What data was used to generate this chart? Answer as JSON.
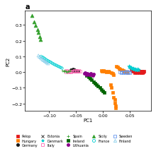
{
  "title": "a",
  "xlabel": "PC1",
  "ylabel": "PC2",
  "xlim": [
    -0.145,
    0.09
  ],
  "ylim": [
    -0.245,
    0.39
  ],
  "xticks": [
    -0.1,
    -0.05,
    0.0,
    0.05
  ],
  "yticks": [
    -0.2,
    -0.1,
    0.0,
    0.1,
    0.2,
    0.3
  ],
  "populations": {
    "Pelop": {
      "color": "#e31a1c",
      "marker": "s",
      "filled": true,
      "ms": 3.5,
      "points": [
        [
          0.055,
          0.008
        ],
        [
          0.057,
          0.012
        ],
        [
          0.058,
          0.005
        ],
        [
          0.06,
          0.01
        ],
        [
          0.061,
          0.003
        ],
        [
          0.062,
          0.007
        ],
        [
          0.063,
          0.002
        ],
        [
          0.064,
          0.006
        ],
        [
          0.065,
          0.004
        ],
        [
          0.066,
          0.009
        ],
        [
          0.067,
          0.001
        ],
        [
          0.068,
          0.005
        ],
        [
          0.069,
          0.003
        ],
        [
          0.07,
          0.007
        ],
        [
          0.071,
          0.002
        ],
        [
          0.072,
          0.006
        ],
        [
          0.073,
          -0.001
        ],
        [
          0.074,
          0.004
        ],
        [
          0.075,
          0.002
        ],
        [
          0.076,
          0.005
        ],
        [
          0.053,
          0.013
        ],
        [
          0.054,
          0.01
        ],
        [
          0.056,
          0.006
        ],
        [
          0.059,
          -0.002
        ],
        [
          0.063,
          -0.004
        ],
        [
          0.067,
          -0.003
        ],
        [
          0.071,
          -0.005
        ],
        [
          0.074,
          -0.002
        ]
      ]
    },
    "Hungary": {
      "color": "#ff7f00",
      "marker": "s",
      "filled": true,
      "ms": 3.5,
      "points": [
        [
          -0.003,
          0.01
        ],
        [
          -0.001,
          0.005
        ],
        [
          0.001,
          0.008
        ],
        [
          0.003,
          0.003
        ],
        [
          0.005,
          0.006
        ],
        [
          0.007,
          0.002
        ],
        [
          0.01,
          0.005
        ],
        [
          0.012,
          0.0
        ],
        [
          0.015,
          -0.005
        ],
        [
          0.018,
          -0.01
        ],
        [
          0.02,
          -0.015
        ],
        [
          0.014,
          -0.08
        ],
        [
          0.016,
          -0.1
        ],
        [
          0.018,
          -0.13
        ],
        [
          0.02,
          -0.16
        ],
        [
          0.022,
          -0.175
        ],
        [
          0.022,
          -0.195
        ],
        [
          0.024,
          -0.215
        ],
        [
          0.023,
          -0.23
        ],
        [
          0.025,
          0.035
        ],
        [
          0.027,
          0.03
        ],
        [
          0.03,
          0.025
        ],
        [
          0.032,
          0.02
        ],
        [
          0.034,
          0.015
        ],
        [
          0.036,
          0.012
        ],
        [
          0.038,
          0.008
        ],
        [
          0.04,
          0.005
        ],
        [
          0.042,
          0.002
        ],
        [
          0.044,
          0.0
        ],
        [
          0.046,
          -0.003
        ]
      ]
    },
    "Germany": {
      "color": "#1a1a1a",
      "marker": "o",
      "filled": true,
      "ms": 3.0,
      "points": [
        [
          -0.06,
          0.015
        ],
        [
          -0.058,
          0.012
        ],
        [
          -0.056,
          0.01
        ],
        [
          -0.054,
          0.008
        ],
        [
          -0.052,
          0.006
        ],
        [
          -0.05,
          0.005
        ],
        [
          -0.055,
          0.018
        ],
        [
          -0.053,
          0.014
        ],
        [
          -0.051,
          0.011
        ],
        [
          -0.049,
          0.008
        ],
        [
          -0.047,
          0.006
        ]
      ]
    },
    "Estonia": {
      "color": "#1a1a1a",
      "marker": "x",
      "filled": false,
      "ms": 3.0,
      "points": [
        [
          0.013,
          0.005
        ],
        [
          0.015,
          0.003
        ],
        [
          0.017,
          0.006
        ],
        [
          0.019,
          0.002
        ],
        [
          0.021,
          0.005
        ],
        [
          0.023,
          0.003
        ],
        [
          0.025,
          0.006
        ],
        [
          0.027,
          0.002
        ],
        [
          0.029,
          0.005
        ],
        [
          0.031,
          0.002
        ]
      ]
    },
    "Denmark": {
      "color": "#00ced1",
      "marker": "*",
      "filled": true,
      "ms": 4.0,
      "points": [
        [
          0.048,
          0.035
        ],
        [
          0.05,
          0.03
        ],
        [
          0.052,
          0.028
        ],
        [
          0.054,
          0.025
        ],
        [
          0.056,
          0.022
        ],
        [
          0.058,
          0.02
        ],
        [
          0.06,
          0.018
        ],
        [
          0.062,
          0.016
        ],
        [
          0.064,
          0.02
        ],
        [
          0.066,
          0.015
        ]
      ]
    },
    "Italy": {
      "color": "#ff69b4",
      "marker": "s",
      "filled": false,
      "ms": 3.0,
      "points": [
        [
          -0.065,
          0.005
        ],
        [
          -0.063,
          0.002
        ],
        [
          -0.061,
          0.006
        ],
        [
          -0.059,
          0.003
        ],
        [
          -0.057,
          0.007
        ],
        [
          -0.055,
          0.004
        ],
        [
          -0.053,
          0.008
        ],
        [
          -0.051,
          0.005
        ],
        [
          -0.049,
          0.009
        ],
        [
          -0.047,
          0.006
        ],
        [
          -0.045,
          0.01
        ],
        [
          -0.043,
          0.007
        ],
        [
          -0.067,
          0.008
        ],
        [
          -0.069,
          0.003
        ]
      ]
    },
    "Spain": {
      "color": "#33a02c",
      "marker": "+",
      "filled": true,
      "ms": 3.5,
      "points": [
        [
          -0.075,
          0.008
        ],
        [
          -0.073,
          0.005
        ],
        [
          -0.071,
          0.01
        ],
        [
          -0.069,
          0.006
        ],
        [
          -0.067,
          0.002
        ],
        [
          -0.065,
          0.007
        ],
        [
          -0.063,
          0.004
        ],
        [
          -0.061,
          0.008
        ]
      ]
    },
    "Ireland": {
      "color": "#006400",
      "marker": "s",
      "filled": true,
      "ms": 3.5,
      "points": [
        [
          -0.03,
          -0.02
        ],
        [
          -0.027,
          -0.03
        ],
        [
          -0.024,
          -0.04
        ],
        [
          -0.021,
          -0.05
        ],
        [
          -0.018,
          -0.06
        ],
        [
          -0.015,
          -0.07
        ],
        [
          -0.012,
          -0.08
        ],
        [
          -0.009,
          -0.09
        ],
        [
          -0.006,
          -0.1
        ],
        [
          -0.003,
          -0.11
        ],
        [
          0.0,
          -0.12
        ],
        [
          0.003,
          -0.13
        ]
      ]
    },
    "Lithuania": {
      "color": "#8b008b",
      "marker": "o",
      "filled": true,
      "ms": 3.0,
      "points": [
        [
          -0.035,
          -0.01
        ],
        [
          -0.033,
          -0.005
        ],
        [
          -0.031,
          -0.015
        ],
        [
          -0.029,
          -0.008
        ],
        [
          -0.027,
          -0.013
        ],
        [
          -0.025,
          -0.018
        ],
        [
          -0.023,
          -0.01
        ],
        [
          -0.021,
          -0.015
        ],
        [
          -0.019,
          -0.02
        ],
        [
          -0.017,
          -0.012
        ]
      ]
    },
    "Sicily": {
      "color": "#33a02c",
      "marker": "^",
      "filled": true,
      "ms": 3.5,
      "points": [
        [
          -0.132,
          0.36
        ],
        [
          -0.128,
          0.32
        ],
        [
          -0.125,
          0.295
        ],
        [
          -0.122,
          0.27
        ],
        [
          -0.12,
          0.25
        ],
        [
          -0.118,
          0.225
        ],
        [
          -0.116,
          0.205
        ]
      ]
    },
    "France": {
      "color": "#00ced1",
      "marker": "o",
      "filled": false,
      "ms": 2.5,
      "points": [
        [
          -0.115,
          0.1
        ],
        [
          -0.112,
          0.095
        ],
        [
          -0.11,
          0.09
        ],
        [
          -0.108,
          0.085
        ],
        [
          -0.106,
          0.08
        ],
        [
          -0.104,
          0.075
        ],
        [
          -0.102,
          0.072
        ],
        [
          -0.1,
          0.068
        ],
        [
          -0.098,
          0.065
        ],
        [
          -0.096,
          0.06
        ],
        [
          -0.094,
          0.056
        ],
        [
          -0.092,
          0.052
        ],
        [
          -0.09,
          0.048
        ],
        [
          -0.088,
          0.045
        ],
        [
          -0.086,
          0.042
        ],
        [
          -0.084,
          0.038
        ],
        [
          -0.082,
          0.035
        ],
        [
          -0.08,
          0.032
        ],
        [
          -0.078,
          0.028
        ],
        [
          -0.076,
          0.025
        ]
      ]
    },
    "Sweden": {
      "color": "#6495ed",
      "marker": "s",
      "filled": false,
      "ms": 3.0,
      "points": [
        [
          0.032,
          0.0
        ],
        [
          0.034,
          -0.005
        ],
        [
          0.036,
          0.002
        ],
        [
          0.038,
          -0.003
        ],
        [
          0.04,
          0.001
        ],
        [
          0.042,
          -0.004
        ],
        [
          0.044,
          0.003
        ],
        [
          0.046,
          -0.002
        ],
        [
          0.048,
          0.001
        ],
        [
          0.05,
          -0.003
        ]
      ]
    },
    "Finland": {
      "color": "#87ceeb",
      "marker": "^",
      "filled": false,
      "ms": 3.0,
      "points": [
        [
          -0.12,
          0.105
        ],
        [
          -0.118,
          0.098
        ],
        [
          -0.116,
          0.092
        ],
        [
          -0.114,
          0.086
        ],
        [
          -0.112,
          0.08
        ],
        [
          -0.11,
          0.075
        ],
        [
          -0.108,
          0.07
        ],
        [
          -0.106,
          0.065
        ],
        [
          -0.104,
          0.06
        ],
        [
          -0.102,
          0.055
        ]
      ]
    }
  },
  "legend": [
    {
      "label": "Pelop",
      "color": "#e31a1c",
      "marker": "s",
      "filled": true
    },
    {
      "label": "Hungary",
      "color": "#ff7f00",
      "marker": "s",
      "filled": true
    },
    {
      "label": "Germany",
      "color": "#1a1a1a",
      "marker": "o",
      "filled": true
    },
    {
      "label": "Estonia",
      "color": "#1a1a1a",
      "marker": "x",
      "filled": false
    },
    {
      "label": "Denmark",
      "color": "#00ced1",
      "marker": "*",
      "filled": true
    },
    {
      "label": "Italy",
      "color": "#ff69b4",
      "marker": "s",
      "filled": false
    },
    {
      "label": "Spain",
      "color": "#33a02c",
      "marker": "+",
      "filled": true
    },
    {
      "label": "Ireland",
      "color": "#006400",
      "marker": "s",
      "filled": true
    },
    {
      "label": "Lithuania",
      "color": "#8b008b",
      "marker": "o",
      "filled": true
    },
    {
      "label": "Sicily",
      "color": "#33a02c",
      "marker": "^",
      "filled": true
    },
    {
      "label": "France",
      "color": "#00ced1",
      "marker": "o",
      "filled": false
    },
    {
      "label": "Sweden",
      "color": "#6495ed",
      "marker": "s",
      "filled": false
    },
    {
      "label": "Finland",
      "color": "#87ceeb",
      "marker": "^",
      "filled": false
    }
  ]
}
